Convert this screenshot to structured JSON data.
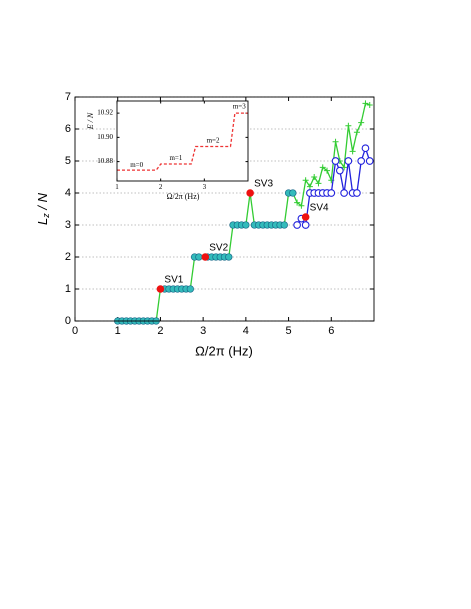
{
  "chart_data": [
    {
      "type": "line",
      "xlabel": "Ω/2π (Hz)",
      "ylabel": [
        "L",
        "z",
        " / N"
      ],
      "xlim": [
        0,
        7
      ],
      "xticks": [
        0,
        1,
        2,
        3,
        4,
        5,
        6
      ],
      "ylim": [
        0,
        7
      ],
      "yticks": [
        0,
        1,
        2,
        3,
        4,
        5,
        6,
        7
      ],
      "grid": true,
      "series": [
        {
          "color": "#33cc33",
          "line": "solid",
          "marker": "plus",
          "x": [
            1.0,
            1.1,
            1.2,
            1.3,
            1.4,
            1.5,
            1.6,
            1.7,
            1.8,
            1.9,
            2.0,
            2.1,
            2.2,
            2.3,
            2.4,
            2.5,
            2.6,
            2.7,
            2.8,
            2.9,
            3.0,
            3.1,
            3.2,
            3.3,
            3.4,
            3.5,
            3.6,
            3.7,
            3.8,
            3.9,
            4.0,
            4.1,
            4.2,
            4.3,
            4.4,
            4.5,
            4.6,
            4.7,
            4.8,
            4.9,
            5.0,
            5.1,
            5.2,
            5.3,
            5.4,
            5.5,
            5.6,
            5.7,
            5.8,
            5.9,
            6.0,
            6.1,
            6.2,
            6.3,
            6.4,
            6.5,
            6.6,
            6.7,
            6.8,
            6.9
          ],
          "values": [
            0,
            0,
            0,
            0,
            0,
            0,
            0,
            0,
            0,
            0,
            1,
            1,
            1,
            1,
            1,
            1,
            1,
            1,
            2,
            2,
            2,
            2,
            2,
            2,
            2,
            2,
            2,
            3,
            3,
            3,
            3,
            4,
            3,
            3,
            3,
            3,
            3,
            3,
            3,
            3,
            4,
            4,
            3.7,
            3.6,
            4.4,
            4.2,
            4.5,
            4.3,
            4.8,
            4.7,
            4.4,
            5.6,
            5.0,
            4.8,
            6.1,
            5.3,
            5.9,
            6.2,
            6.8,
            6.75
          ]
        },
        {
          "color": "#33bbbb",
          "line": "none",
          "marker": "filled-circle",
          "x": [
            1.0,
            1.1,
            1.2,
            1.3,
            1.4,
            1.5,
            1.6,
            1.7,
            1.8,
            1.9,
            2.1,
            2.2,
            2.3,
            2.4,
            2.5,
            2.6,
            2.7,
            2.8,
            2.9,
            3.1,
            3.2,
            3.3,
            3.4,
            3.5,
            3.6,
            3.7,
            3.8,
            3.9,
            4.0,
            4.2,
            4.3,
            4.4,
            4.5,
            4.6,
            4.7,
            4.8,
            4.9,
            5.0,
            5.1
          ],
          "values": [
            0,
            0,
            0,
            0,
            0,
            0,
            0,
            0,
            0,
            0,
            1,
            1,
            1,
            1,
            1,
            1,
            1,
            2,
            2,
            2,
            2,
            2,
            2,
            2,
            2,
            3,
            3,
            3,
            3,
            3,
            3,
            3,
            3,
            3,
            3,
            3,
            3,
            4,
            4
          ]
        },
        {
          "color": "#2222dd",
          "line": "solid",
          "marker": "open-circle",
          "x": [
            5.2,
            5.3,
            5.4,
            5.5,
            5.6,
            5.7,
            5.8,
            5.9,
            6.0,
            6.1,
            6.2,
            6.3,
            6.4,
            6.5,
            6.6,
            6.7,
            6.8,
            6.9
          ],
          "values": [
            3,
            3.2,
            3,
            4,
            4,
            4,
            4,
            4,
            4,
            5,
            4.7,
            4,
            5,
            4,
            4,
            5,
            5.4,
            5
          ]
        },
        {
          "color": "#ee1111",
          "line": "none",
          "marker": "dot",
          "x": [
            2.0,
            3.05,
            4.1,
            5.4
          ],
          "values": [
            1,
            2,
            4,
            3.25
          ],
          "labels": [
            "SV1",
            "SV2",
            "SV3",
            "SV4"
          ]
        }
      ]
    },
    {
      "type": "line",
      "xlabel": "Ω/2π (Hz)",
      "ylabel": "E / N",
      "xlim": [
        1,
        4
      ],
      "xticks": [
        1,
        2,
        3
      ],
      "ylim": [
        10.864,
        10.93
      ],
      "yticks": [
        {
          "value": 10.88,
          "label": "10.88"
        },
        {
          "value": 10.9,
          "label": "10.90"
        },
        {
          "value": 10.92,
          "label": "10.92"
        }
      ],
      "grid": false,
      "series": [
        {
          "color": "#ee3333",
          "line": "dashed",
          "marker": "none",
          "x": [
            1.0,
            1.1,
            1.2,
            1.3,
            1.4,
            1.5,
            1.6,
            1.7,
            1.8,
            1.9,
            2.0,
            2.1,
            2.2,
            2.3,
            2.4,
            2.5,
            2.6,
            2.7,
            2.8,
            2.9,
            3.0,
            3.1,
            3.2,
            3.3,
            3.4,
            3.5,
            3.6,
            3.7,
            3.8,
            3.9,
            4.0
          ],
          "values": [
            10.873,
            10.873,
            10.873,
            10.873,
            10.873,
            10.873,
            10.873,
            10.873,
            10.873,
            10.873,
            10.878,
            10.878,
            10.878,
            10.878,
            10.878,
            10.878,
            10.878,
            10.878,
            10.8925,
            10.8925,
            10.8925,
            10.8925,
            10.8925,
            10.8925,
            10.8925,
            10.8925,
            10.8925,
            10.92,
            10.92,
            10.92,
            10.92
          ]
        }
      ],
      "annotations": [
        {
          "text": "m=0",
          "x": 1.45,
          "y": 10.877
        },
        {
          "text": "m=1",
          "x": 2.35,
          "y": 10.8825
        },
        {
          "text": "m=2",
          "x": 3.2,
          "y": 10.897
        },
        {
          "text": "m=3",
          "x": 3.8,
          "y": 10.925
        }
      ]
    }
  ]
}
